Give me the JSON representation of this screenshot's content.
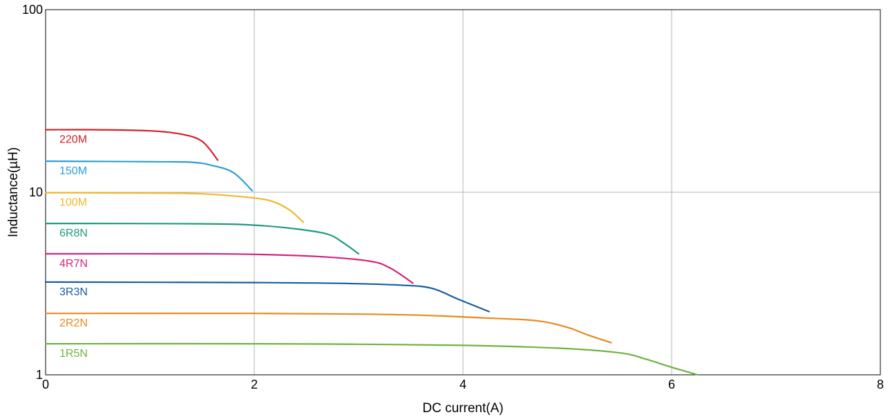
{
  "chart_data": {
    "type": "line",
    "xlabel": "DC current(A)",
    "ylabel": "Inductance(µH)",
    "xlim": [
      0,
      8
    ],
    "ylim": [
      1,
      100
    ],
    "y_scale": "log",
    "grid": true,
    "x_ticks": [
      0,
      2,
      4,
      6,
      8
    ],
    "y_ticks": [
      1,
      10,
      100
    ],
    "x_tick_labels": [
      "0",
      "2",
      "4",
      "6",
      "8"
    ],
    "y_tick_labels": [
      "1",
      "10",
      "100"
    ],
    "series": [
      {
        "name": "220M",
        "color": "#d32029",
        "points": [
          [
            0,
            22.0
          ],
          [
            0.5,
            22.0
          ],
          [
            1.0,
            21.7
          ],
          [
            1.3,
            20.8
          ],
          [
            1.5,
            19.0
          ],
          [
            1.65,
            15.0
          ]
        ]
      },
      {
        "name": "150M",
        "color": "#2a9fd6",
        "points": [
          [
            0,
            14.8
          ],
          [
            1.0,
            14.7
          ],
          [
            1.4,
            14.6
          ],
          [
            1.6,
            14.0
          ],
          [
            1.8,
            12.8
          ],
          [
            1.98,
            10.2
          ]
        ]
      },
      {
        "name": "100M",
        "color": "#f0b82a",
        "points": [
          [
            0,
            9.95
          ],
          [
            1.0,
            9.9
          ],
          [
            1.5,
            9.8
          ],
          [
            2.0,
            9.3
          ],
          [
            2.2,
            8.8
          ],
          [
            2.35,
            7.9
          ],
          [
            2.47,
            6.85
          ]
        ]
      },
      {
        "name": "6R8N",
        "color": "#1f9a7e",
        "points": [
          [
            0,
            6.75
          ],
          [
            1.5,
            6.72
          ],
          [
            2.0,
            6.6
          ],
          [
            2.4,
            6.3
          ],
          [
            2.7,
            5.9
          ],
          [
            2.85,
            5.3
          ],
          [
            3.0,
            4.6
          ]
        ]
      },
      {
        "name": "4R7N",
        "color": "#d0267e",
        "points": [
          [
            0,
            4.6
          ],
          [
            1.5,
            4.6
          ],
          [
            2.0,
            4.57
          ],
          [
            2.6,
            4.45
          ],
          [
            3.1,
            4.2
          ],
          [
            3.3,
            3.85
          ],
          [
            3.52,
            3.18
          ]
        ]
      },
      {
        "name": "3R3N",
        "color": "#155da3",
        "points": [
          [
            0,
            3.22
          ],
          [
            2.0,
            3.2
          ],
          [
            2.8,
            3.17
          ],
          [
            3.4,
            3.1
          ],
          [
            3.7,
            2.98
          ],
          [
            3.95,
            2.6
          ],
          [
            4.25,
            2.22
          ]
        ]
      },
      {
        "name": "2R2N",
        "color": "#e8891c",
        "points": [
          [
            0,
            2.17
          ],
          [
            2.0,
            2.17
          ],
          [
            3.0,
            2.15
          ],
          [
            3.6,
            2.12
          ],
          [
            4.2,
            2.05
          ],
          [
            4.7,
            1.98
          ],
          [
            5.0,
            1.82
          ],
          [
            5.2,
            1.65
          ],
          [
            5.42,
            1.5
          ]
        ]
      },
      {
        "name": "1R5N",
        "color": "#6db33f",
        "points": [
          [
            0,
            1.48
          ],
          [
            2.0,
            1.48
          ],
          [
            3.0,
            1.47
          ],
          [
            4.0,
            1.45
          ],
          [
            4.9,
            1.4
          ],
          [
            5.5,
            1.32
          ],
          [
            5.75,
            1.22
          ],
          [
            6.0,
            1.1
          ],
          [
            6.25,
            1.0
          ]
        ]
      }
    ]
  }
}
